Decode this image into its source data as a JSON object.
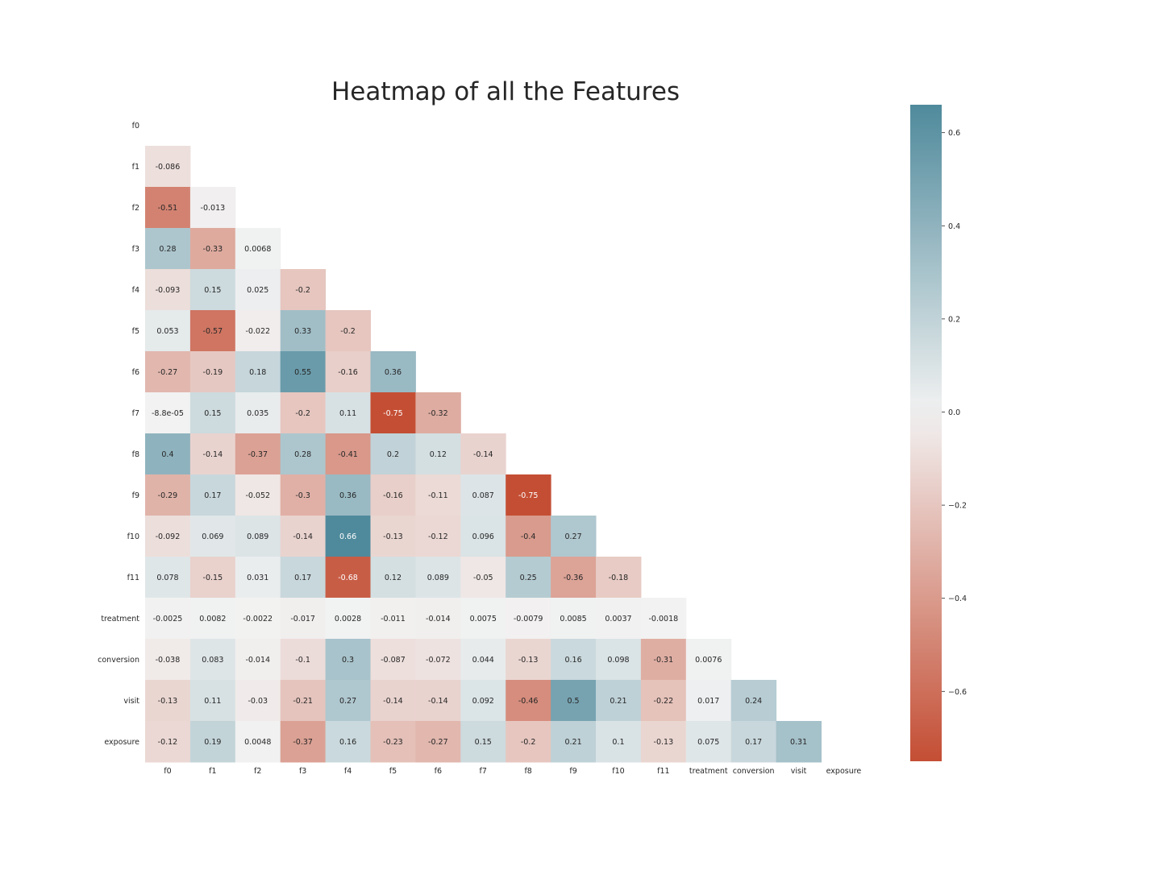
{
  "chart_data": {
    "type": "heatmap",
    "title": "Heatmap of all the Features",
    "labels": [
      "f0",
      "f1",
      "f2",
      "f3",
      "f4",
      "f5",
      "f6",
      "f7",
      "f8",
      "f9",
      "f10",
      "f11",
      "treatment",
      "conversion",
      "visit",
      "exposure"
    ],
    "mask": "upper-triangle-including-diagonal",
    "matrix": [
      [],
      [
        "-0.086"
      ],
      [
        "-0.51",
        "-0.013"
      ],
      [
        "0.28",
        "-0.33",
        "0.0068"
      ],
      [
        "-0.093",
        "0.15",
        "0.025",
        "-0.2"
      ],
      [
        "0.053",
        "-0.57",
        "-0.022",
        "0.33",
        "-0.2"
      ],
      [
        "-0.27",
        "-0.19",
        "0.18",
        "0.55",
        "-0.16",
        "0.36"
      ],
      [
        "-8.8e-05",
        "0.15",
        "0.035",
        "-0.2",
        "0.11",
        "-0.75",
        "-0.32"
      ],
      [
        "0.4",
        "-0.14",
        "-0.37",
        "0.28",
        "-0.41",
        "0.2",
        "0.12",
        "-0.14"
      ],
      [
        "-0.29",
        "0.17",
        "-0.052",
        "-0.3",
        "0.36",
        "-0.16",
        "-0.11",
        "0.087",
        "-0.75"
      ],
      [
        "-0.092",
        "0.069",
        "0.089",
        "-0.14",
        "0.66",
        "-0.13",
        "-0.12",
        "0.096",
        "-0.4",
        "0.27"
      ],
      [
        "0.078",
        "-0.15",
        "0.031",
        "0.17",
        "-0.68",
        "0.12",
        "0.089",
        "-0.05",
        "0.25",
        "-0.36",
        "-0.18"
      ],
      [
        "-0.0025",
        "0.0082",
        "-0.0022",
        "-0.017",
        "0.0028",
        "-0.011",
        "-0.014",
        "0.0075",
        "-0.0079",
        "0.0085",
        "0.0037",
        "-0.0018"
      ],
      [
        "-0.038",
        "0.083",
        "-0.014",
        "-0.1",
        "0.3",
        "-0.087",
        "-0.072",
        "0.044",
        "-0.13",
        "0.16",
        "0.098",
        "-0.31",
        "0.0076"
      ],
      [
        "-0.13",
        "0.11",
        "-0.03",
        "-0.21",
        "0.27",
        "-0.14",
        "-0.14",
        "0.092",
        "-0.46",
        "0.5",
        "0.21",
        "-0.22",
        "0.017",
        "0.24"
      ],
      [
        "-0.12",
        "0.19",
        "0.0048",
        "-0.37",
        "0.16",
        "-0.23",
        "-0.27",
        "0.15",
        "-0.2",
        "0.21",
        "0.1",
        "-0.13",
        "0.075",
        "0.17",
        "0.31"
      ]
    ],
    "colorbar": {
      "vmin": -0.75,
      "vmax": 0.66,
      "ticks": [
        "0.6",
        "0.4",
        "0.2",
        "0.0",
        "−0.2",
        "−0.4",
        "−0.6"
      ],
      "tick_values": [
        0.6,
        0.4,
        0.2,
        0.0,
        -0.2,
        -0.4,
        -0.6
      ],
      "colormap": "diverging red-white-blue",
      "color_negative": "#c44e34",
      "color_center": "#f2f2f2",
      "color_positive": "#4f8a9c"
    }
  }
}
